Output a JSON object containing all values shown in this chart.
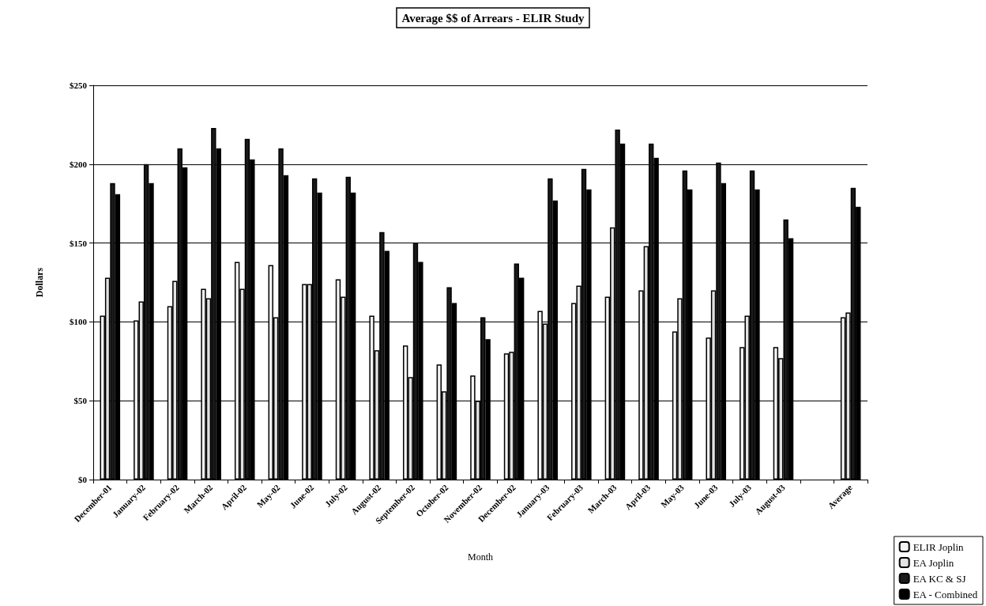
{
  "chart_data": {
    "type": "bar",
    "title": "Average $$ of Arrears - ELIR Study",
    "xlabel": "Month",
    "ylabel": "Dollars",
    "categories": [
      "December-01",
      "January-02",
      "February-02",
      "March-02",
      "April-02",
      "May-02",
      "June-02",
      "July-02",
      "August-02",
      "September-02",
      "October-02",
      "November-02",
      "December-02",
      "January-03",
      "February-03",
      "March-03",
      "April-03",
      "May-03",
      "June-03",
      "July-03",
      "August-03",
      null,
      "Average"
    ],
    "series": [
      {
        "name": "ELIR Joplin",
        "color": "#f4f4f4",
        "values": [
          104,
          101,
          110,
          121,
          138,
          136,
          124,
          127,
          104,
          85,
          73,
          66,
          80,
          107,
          112,
          116,
          120,
          94,
          90,
          84,
          84,
          null,
          103
        ]
      },
      {
        "name": "EA Joplin",
        "color": "#e2e2e2",
        "values": [
          128,
          113,
          126,
          115,
          121,
          103,
          124,
          116,
          82,
          65,
          56,
          50,
          81,
          99,
          123,
          160,
          148,
          115,
          120,
          104,
          77,
          null,
          106
        ]
      },
      {
        "name": "EA KC & SJ",
        "color": "#1a1a1a",
        "values": [
          188,
          200,
          210,
          223,
          216,
          210,
          191,
          192,
          157,
          150,
          122,
          103,
          137,
          191,
          197,
          222,
          213,
          196,
          201,
          196,
          165,
          null,
          185
        ]
      },
      {
        "name": "EA - Combined",
        "color": "#000000",
        "values": [
          181,
          188,
          198,
          210,
          203,
          193,
          182,
          182,
          145,
          138,
          112,
          89,
          128,
          177,
          184,
          213,
          204,
          184,
          188,
          184,
          153,
          null,
          173
        ]
      }
    ],
    "ylim": [
      0,
      250
    ],
    "yticks": [
      {
        "value": 0,
        "label": "$0"
      },
      {
        "value": 50,
        "label": "$50"
      },
      {
        "value": 100,
        "label": "$100"
      },
      {
        "value": 150,
        "label": "$150"
      },
      {
        "value": 200,
        "label": "$200"
      },
      {
        "value": 250,
        "label": "$250"
      }
    ],
    "grid": "y",
    "legend": "bottom right"
  }
}
